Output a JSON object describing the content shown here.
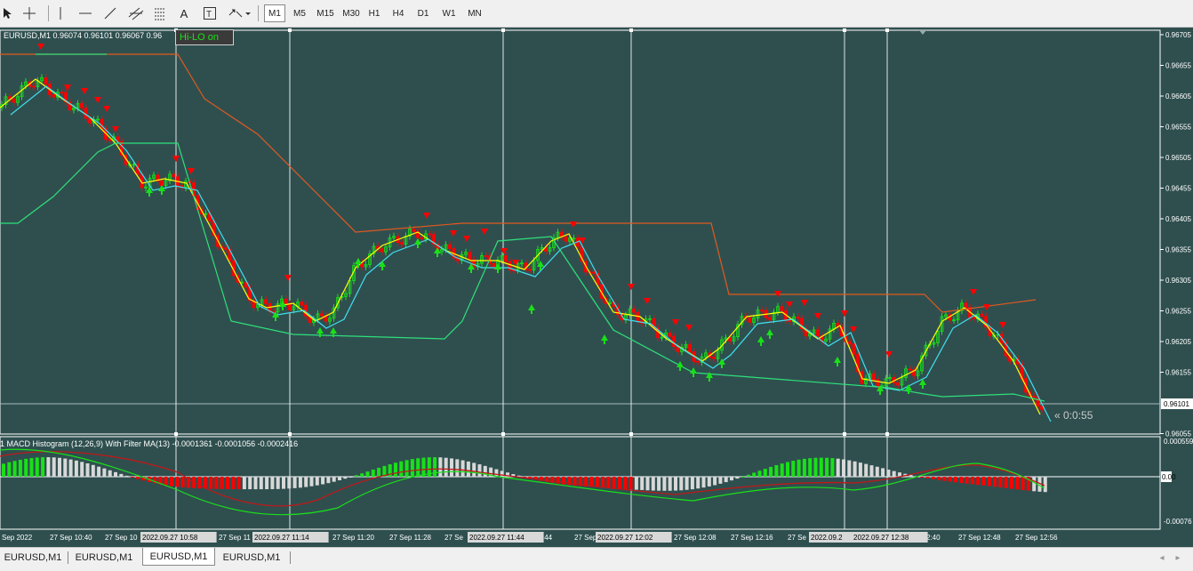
{
  "toolbar": {
    "timeframes": [
      "M1",
      "M5",
      "M15",
      "M30",
      "H1",
      "H4",
      "D1",
      "W1",
      "MN"
    ],
    "active_timeframe": "M1"
  },
  "chart": {
    "symbol_label": "EURUSD,M1  0.96074 0.96101 0.96067 0.96",
    "hilo_button": "Hi-LO on",
    "countdown": "« 0:0:55",
    "price_scale": [
      "0.96705",
      "0.96655",
      "0.96605",
      "0.96555",
      "0.96505",
      "0.96455",
      "0.96405",
      "0.96355",
      "0.96305",
      "0.96255",
      "0.96205",
      "0.96155",
      "0.96101",
      "0.96055"
    ],
    "current_price": "0.96101",
    "macd_title": "1 MACD Histogram (12,26,9) With Filter MA(13) -0.0001361 -0.0001056 -0.0002416",
    "macd_scale": [
      "0.000559",
      "0.00",
      "-0.00076"
    ],
    "time_axis": [
      "Sep 2022",
      "27 Sep 10:40",
      "27 Sep 10",
      "27 Sep 11",
      "27 Sep 11:20",
      "27 Sep 11:28",
      "27 Se",
      ":44",
      "27 Sep 1",
      "27 Sep 12:08",
      "27 Sep 12:16",
      "27 Se",
      "2:40",
      "27 Sep 12:48",
      "27 Sep 12:56"
    ],
    "time_markers": [
      "2022.09.27 10:58",
      "2022.09.27 11:14",
      "2022.09.27 11:44",
      "2022.09.27 12:02",
      "2022.09.2",
      "2022.09.27 12:38"
    ],
    "colors": {
      "background": "#2f4f4f",
      "bull": "#19e019",
      "bear": "#ff0000",
      "signal_yellow": "#ffff00",
      "ma_cyan": "#40e0f0",
      "hilo_orange": "#e05a1e",
      "hilo_green": "#2ee07a"
    }
  },
  "tabs": [
    "EURUSD,M1",
    "EURUSD,M1",
    "EURUSD,M1",
    "EURUSD,M1"
  ],
  "active_tab": 2
}
